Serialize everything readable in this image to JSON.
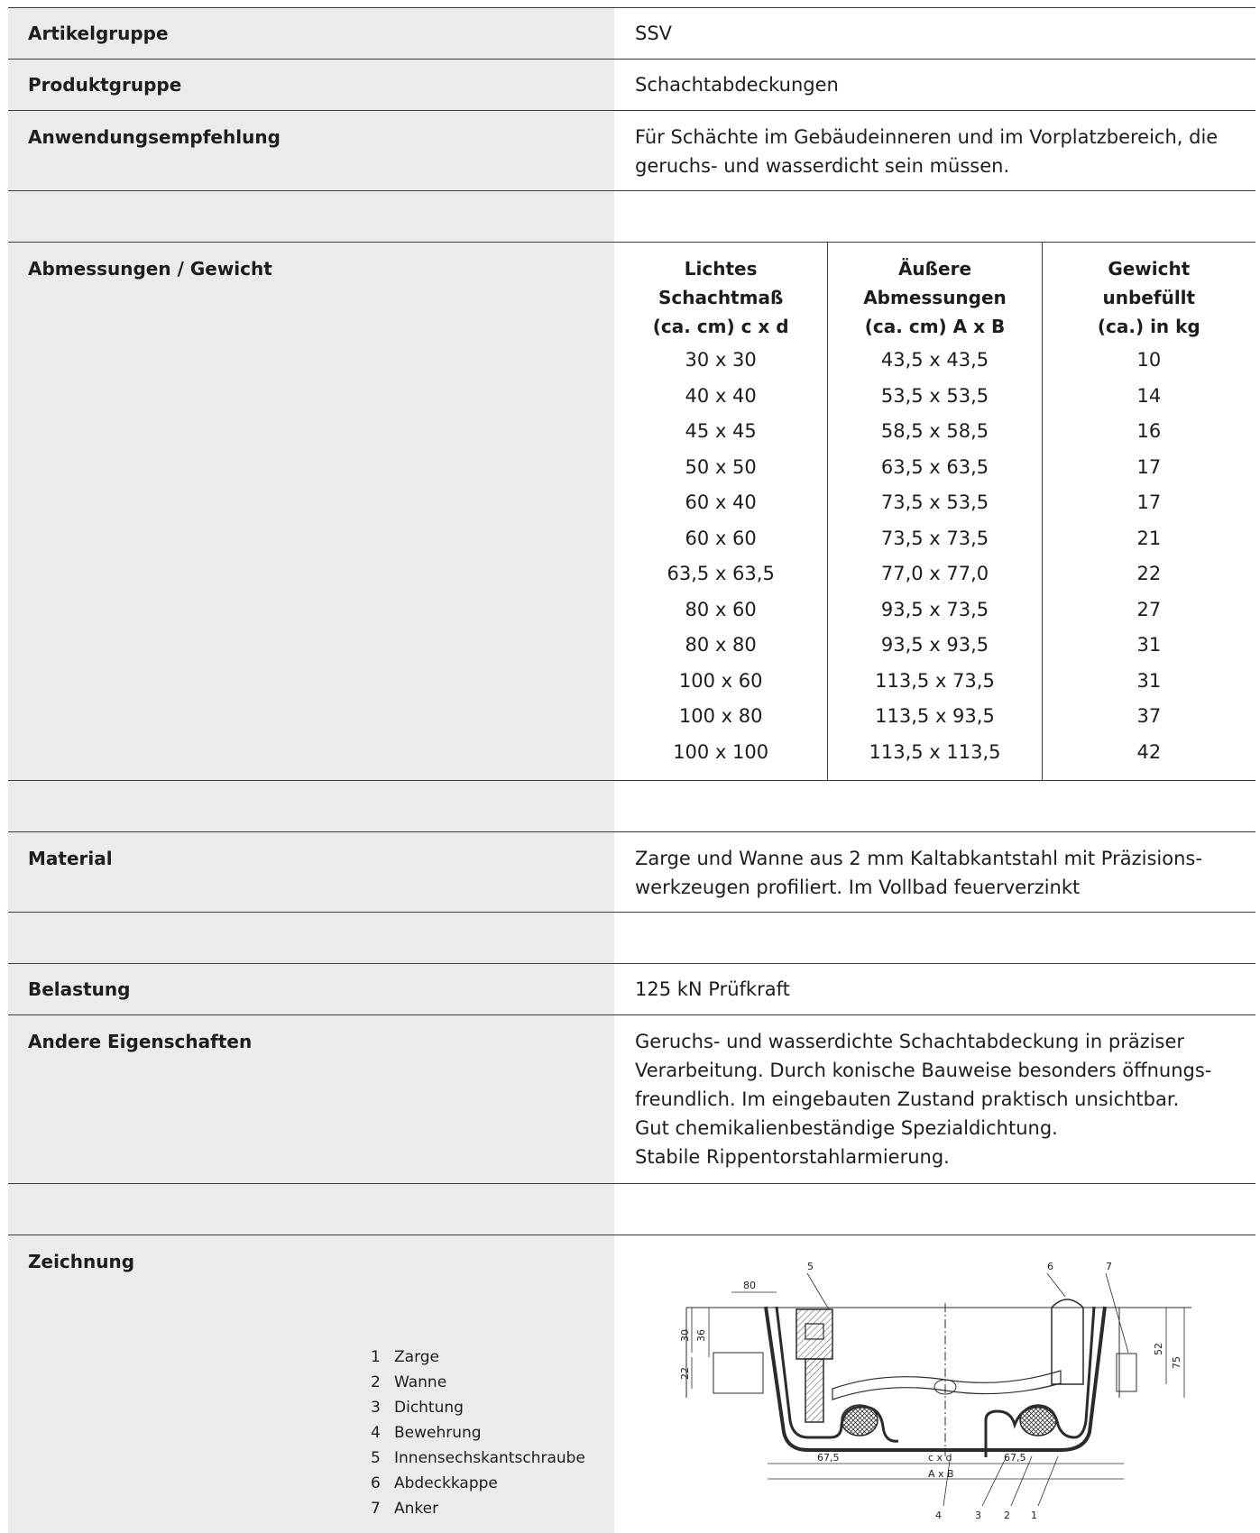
{
  "rows": {
    "artikelgruppe": {
      "label": "Artikelgruppe",
      "value": "SSV"
    },
    "produktgruppe": {
      "label": "Produktgruppe",
      "value": "Schachtabdeckungen"
    },
    "anwendung": {
      "label": "Anwendungsempfehlung",
      "line1": "Für Schächte im Gebäudeinneren und im Vorplatzbereich, die",
      "line2": "geruchs- und wasserdicht sein müssen."
    },
    "abmessungen": {
      "label": "Abmessungen / Gewicht"
    },
    "material": {
      "label": "Material",
      "line1": "Zarge und Wanne aus 2 mm Kaltabkantstahl mit Präzisions-",
      "line2": "werkzeugen profiliert. Im Vollbad feuerverzinkt"
    },
    "belastung": {
      "label": "Belastung",
      "value": "125 kN Prüfkraft"
    },
    "eigenschaften": {
      "label": "Andere Eigenschaften",
      "lines": [
        "Geruchs- und wasserdichte Schachtabdeckung in präziser",
        "Verarbeitung. Durch konische Bauweise besonders öffnungs-",
        "freundlich. Im eingebauten Zustand praktisch unsichtbar.",
        "Gut chemikalienbeständige Spezialdichtung.",
        "Stabile Rippentorstahlarmierung."
      ]
    },
    "zeichnung": {
      "label": "Zeichnung"
    }
  },
  "dimension_table": {
    "headers": [
      [
        "Lichtes",
        "Schachtmaß",
        "(ca. cm) c x d"
      ],
      [
        "Äußere",
        "Abmessungen",
        "(ca. cm) A x B"
      ],
      [
        "Gewicht",
        "unbefüllt",
        "(ca.) in kg"
      ]
    ],
    "rows": [
      [
        "30 x 30",
        "43,5 x 43,5",
        "10"
      ],
      [
        "40 x 40",
        "53,5 x 53,5",
        "14"
      ],
      [
        "45 x 45",
        "58,5 x 58,5",
        "16"
      ],
      [
        "50 x 50",
        "63,5 x 63,5",
        "17"
      ],
      [
        "60 x 40",
        "73,5 x 53,5",
        "17"
      ],
      [
        "60 x 60",
        "73,5 x 73,5",
        "21"
      ],
      [
        "63,5 x 63,5",
        "77,0 x 77,0",
        "22"
      ],
      [
        "80 x 60",
        "93,5 x 73,5",
        "27"
      ],
      [
        "80 x 80",
        "93,5 x 93,5",
        "31"
      ],
      [
        "100 x 60",
        "113,5 x 73,5",
        "31"
      ],
      [
        "100 x 80",
        "113,5 x 93,5",
        "37"
      ],
      [
        "100 x 100",
        "113,5 x 113,5",
        "42"
      ]
    ]
  },
  "legend": [
    {
      "num": "1",
      "text": "Zarge"
    },
    {
      "num": "2",
      "text": "Wanne"
    },
    {
      "num": "3",
      "text": "Dichtung"
    },
    {
      "num": "4",
      "text": "Bewehrung"
    },
    {
      "num": "5",
      "text": "Innensechskantschraube"
    },
    {
      "num": "6",
      "text": "Abdeckkappe"
    },
    {
      "num": "7",
      "text": "Anker"
    }
  ],
  "drawing_labels": {
    "d80": "80",
    "d30": "30",
    "d36": "36",
    "d22": "22",
    "d52": "52",
    "d75": "75",
    "d67a": "67,5",
    "d67b": "67,5",
    "cxd": "c x d",
    "axb": "A x B",
    "n1": "1",
    "n2": "2",
    "n3": "3",
    "n4": "4",
    "n5": "5",
    "n6": "6",
    "n7": "7"
  }
}
